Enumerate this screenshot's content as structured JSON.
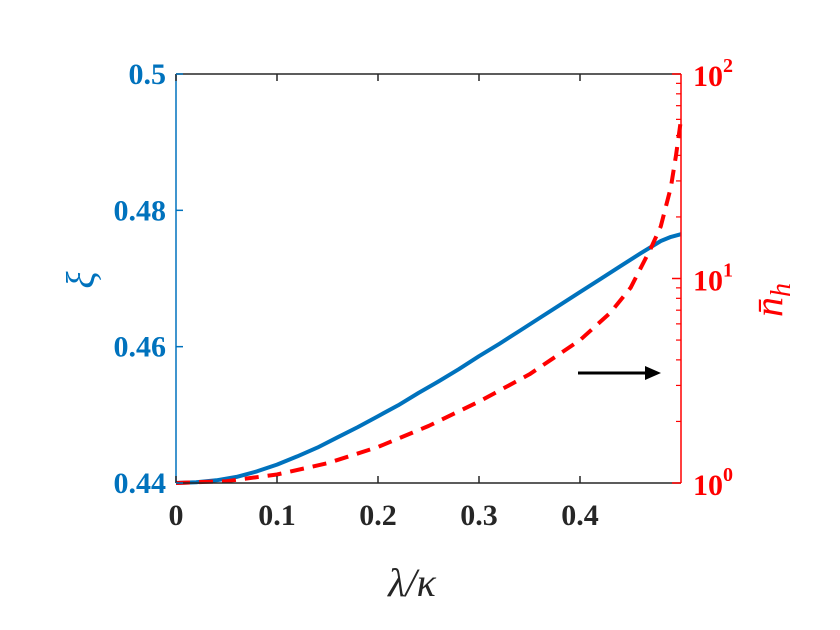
{
  "chart_data": {
    "type": "line",
    "xlabel": "λ/κ",
    "ylabel_left": "ξ",
    "ylabel_right_base": "n̄",
    "ylabel_right_sub": "h",
    "xlim": [
      0,
      0.5
    ],
    "ylim_left": [
      0.44,
      0.5
    ],
    "ylim_right": [
      1,
      100
    ],
    "right_scale": "log",
    "x_ticks": [
      "0",
      "0.1",
      "0.2",
      "0.3",
      "0.4"
    ],
    "y_left_ticks": [
      "0.44",
      "0.46",
      "0.48",
      "0.5"
    ],
    "y_right_ticks": [
      {
        "base": "10",
        "exp": "0"
      },
      {
        "base": "10",
        "exp": "1"
      },
      {
        "base": "10",
        "exp": "2"
      }
    ],
    "grid": false,
    "series": [
      {
        "axis": "left",
        "style": "solid",
        "color": "#0072BD",
        "x": [
          0,
          0.02,
          0.04,
          0.06,
          0.08,
          0.1,
          0.12,
          0.14,
          0.16,
          0.18,
          0.2,
          0.22,
          0.24,
          0.26,
          0.28,
          0.3,
          0.32,
          0.34,
          0.36,
          0.38,
          0.4,
          0.42,
          0.44,
          0.46,
          0.48,
          0.49,
          0.5
        ],
        "y": [
          0.44,
          0.4401,
          0.4404,
          0.4409,
          0.4417,
          0.4427,
          0.4439,
          0.4452,
          0.4467,
          0.4482,
          0.4498,
          0.4514,
          0.4532,
          0.4549,
          0.4567,
          0.4586,
          0.4604,
          0.4623,
          0.4642,
          0.4661,
          0.468,
          0.4699,
          0.4718,
          0.4737,
          0.4755,
          0.4761,
          0.4765
        ]
      },
      {
        "axis": "right",
        "style": "dashed",
        "color": "#FF0000",
        "x": [
          0,
          0.05,
          0.1,
          0.15,
          0.2,
          0.25,
          0.3,
          0.35,
          0.4,
          0.43,
          0.45,
          0.47,
          0.48,
          0.49,
          0.495,
          0.5
        ],
        "y": [
          1.0,
          1.02,
          1.1,
          1.25,
          1.5,
          1.9,
          2.5,
          3.4,
          5.0,
          6.8,
          9.0,
          14.0,
          18.0,
          28.0,
          40.0,
          60.0
        ]
      }
    ]
  }
}
